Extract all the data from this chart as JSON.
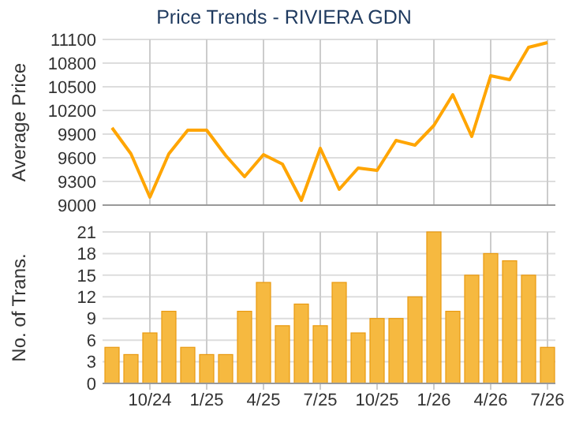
{
  "chart_data": [
    {
      "type": "line",
      "title": "Price Trends - RIVIERA GDN",
      "ylabel": "Average Price",
      "categories": [
        null,
        null,
        null,
        null,
        null,
        null,
        null,
        null,
        null,
        null,
        null,
        null,
        null,
        null,
        null,
        null,
        null,
        null,
        null,
        null,
        null,
        null,
        null,
        null
      ],
      "series": [
        {
          "color": "#ffa500",
          "values": [
            9980,
            9650,
            9100,
            9650,
            9950,
            9950,
            9630,
            9360,
            9640,
            9520,
            9060,
            9720,
            9200,
            9470,
            9440,
            9820,
            9760,
            10010,
            10400,
            9870,
            10640,
            10590,
            11000,
            11060
          ]
        }
      ],
      "ylim": [
        9000,
        11100
      ],
      "yticks": [
        9000,
        9300,
        9600,
        9900,
        10200,
        10500,
        10800,
        11100
      ],
      "grid": true,
      "tick_labels": "y"
    },
    {
      "type": "bar",
      "ylabel": "No. of Trans.",
      "categories": [
        null,
        null,
        "10/24",
        null,
        null,
        "1/25",
        null,
        null,
        "4/25",
        null,
        null,
        "7/25",
        null,
        null,
        "10/25",
        null,
        null,
        "1/26",
        null,
        null,
        "4/26",
        null,
        null,
        "7/26"
      ],
      "series": [
        {
          "color": "#f6b940",
          "values": [
            5,
            4,
            7,
            10,
            5,
            4,
            4,
            10,
            14,
            8,
            11,
            8,
            14,
            7,
            9,
            9,
            12,
            21,
            10,
            15,
            18,
            17,
            15,
            5
          ]
        }
      ],
      "ylim": [
        0,
        21
      ],
      "yticks": [
        0,
        3,
        6,
        9,
        12,
        15,
        18,
        21
      ],
      "grid": true
    }
  ]
}
